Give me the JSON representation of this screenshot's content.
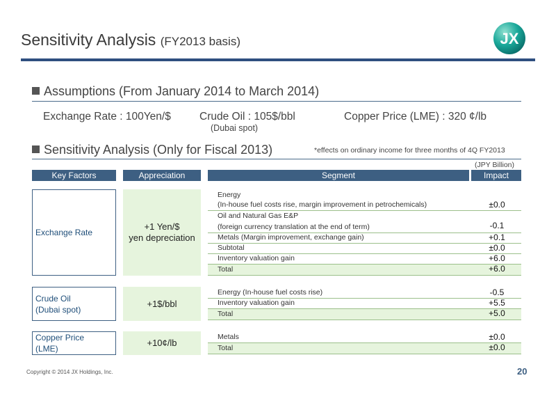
{
  "title": {
    "main": "Sensitivity Analysis",
    "sub": "(FY2013 basis)"
  },
  "logo": {
    "text": "JX",
    "icon": "jx-logo-icon"
  },
  "assumptions": {
    "heading": "Assumptions (From January 2014 to March 2014)",
    "exchange_rate": "Exchange Rate : 100Yen/$",
    "crude_oil": "Crude Oil : 105$/bbl",
    "crude_oil_note": "(Dubai spot)",
    "copper_price": "Copper Price (LME) : 320 ¢/lb"
  },
  "sensitivity": {
    "heading": "Sensitivity Analysis (Only for Fiscal 2013)",
    "note": "*effects on ordinary income for  three months of 4Q FY2013",
    "unit": "(JPY Billion)"
  },
  "table": {
    "headers": {
      "key_factors": "Key Factors",
      "appreciation": "Appreciation",
      "segment": "Segment",
      "impact": "Impact"
    },
    "groups": [
      {
        "key_factor": "Exchange Rate",
        "appreciation_line1": "+1 Yen/$",
        "appreciation_line2": "yen depreciation",
        "rows": [
          {
            "label": "Energy",
            "value": ""
          },
          {
            "label": " (In-house fuel costs rise, margin improvement in petrochemicals)",
            "value": "±0.0"
          },
          {
            "label": "Oil and Natural Gas E&P",
            "value": ""
          },
          {
            "label": " (foreign currency translation at the end of term)",
            "value": "-0.1"
          },
          {
            "label": "Metals (Margin improvement, exchange gain)",
            "value": "+0.1"
          },
          {
            "label": "Subtotal",
            "value": "±0.0"
          },
          {
            "label": "Inventory valuation gain",
            "value": "+6.0"
          },
          {
            "label": "Total",
            "value": "+6.0"
          }
        ]
      },
      {
        "key_factor_line1": "Crude Oil",
        "key_factor_line2": "(Dubai spot)",
        "appreciation": "+1$/bbl",
        "rows": [
          {
            "label": "Energy (In-house fuel costs rise)",
            "value": "-0.5"
          },
          {
            "label": "Inventory valuation gain",
            "value": "+5.5"
          },
          {
            "label": "Total",
            "value": "+5.0"
          }
        ]
      },
      {
        "key_factor_line1": "Copper Price",
        "key_factor_line2": "(LME)",
        "appreciation": "+10¢/lb",
        "rows": [
          {
            "label": "Metals",
            "value": "±0.0"
          },
          {
            "label": "Total",
            "value": "±0.0"
          }
        ]
      }
    ]
  },
  "footer": {
    "copyright": "Copyright © 2014 JX Holdings, Inc.",
    "page_number": "20"
  }
}
